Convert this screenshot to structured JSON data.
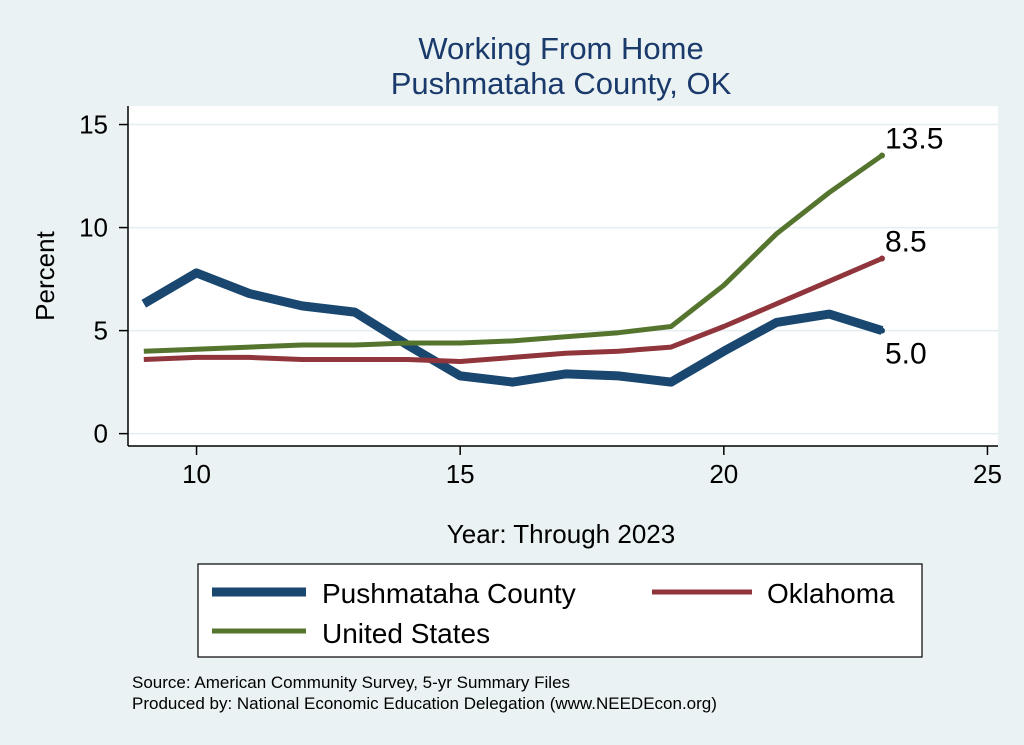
{
  "chart_data": {
    "type": "line",
    "title": [
      "Working From Home",
      "Pushmataha County, OK"
    ],
    "xlabel": "Year: Through 2023",
    "ylabel": "Percent",
    "xlim": [
      8.7,
      25.2
    ],
    "ylim": [
      -0.6,
      15.9
    ],
    "xticks": [
      10,
      15,
      20,
      25
    ],
    "yticks": [
      0,
      5,
      10,
      15
    ],
    "grid": true,
    "legend_position": "bottom",
    "series": [
      {
        "name": "Pushmataha County",
        "color": "#1a476f",
        "width": 9,
        "x": [
          9,
          10,
          11,
          12,
          13,
          14,
          15,
          16,
          17,
          18,
          19,
          20,
          21,
          22,
          23
        ],
        "values": [
          6.3,
          7.8,
          6.8,
          6.2,
          5.9,
          4.3,
          2.8,
          2.5,
          2.9,
          2.8,
          2.5,
          4.0,
          5.4,
          5.8,
          5.0
        ],
        "end_label": "5.0"
      },
      {
        "name": "Oklahoma",
        "color": "#90353b",
        "width": 5,
        "x": [
          9,
          10,
          11,
          12,
          13,
          14,
          15,
          16,
          17,
          18,
          19,
          20,
          21,
          22,
          23
        ],
        "values": [
          3.6,
          3.7,
          3.7,
          3.6,
          3.6,
          3.6,
          3.5,
          3.7,
          3.9,
          4.0,
          4.2,
          5.2,
          6.3,
          7.4,
          8.5
        ],
        "end_label": "8.5"
      },
      {
        "name": "United States",
        "color": "#55752f",
        "width": 5,
        "x": [
          9,
          10,
          11,
          12,
          13,
          14,
          15,
          16,
          17,
          18,
          19,
          20,
          21,
          22,
          23
        ],
        "values": [
          4.0,
          4.1,
          4.2,
          4.3,
          4.3,
          4.4,
          4.4,
          4.5,
          4.7,
          4.9,
          5.2,
          7.2,
          9.7,
          11.7,
          13.5
        ],
        "end_label": "13.5"
      }
    ],
    "footer": [
      "Source: American Community Survey, 5-yr Summary Files",
      "Produced by: National Economic Education Delegation (www.NEEDEcon.org)"
    ]
  }
}
